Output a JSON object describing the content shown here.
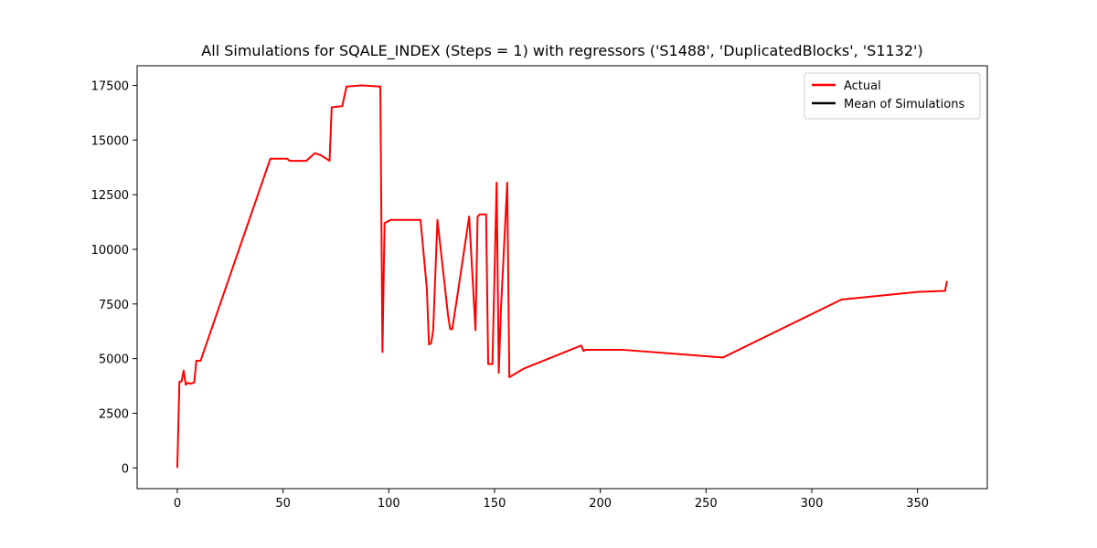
{
  "chart_data": {
    "type": "line",
    "title": "All Simulations for SQALE_INDEX (Steps = 1) with regressors ('S1488', 'DuplicatedBlocks', 'S1132')",
    "xlabel": "",
    "ylabel": "",
    "xlim": [
      -19,
      383
    ],
    "ylim": [
      -950,
      18400
    ],
    "x_ticks": [
      0,
      50,
      100,
      150,
      200,
      250,
      300,
      350
    ],
    "y_ticks": [
      0,
      2500,
      5000,
      7500,
      10000,
      12500,
      15000,
      17500
    ],
    "y_tick_labels": [
      "0",
      "2500",
      "5000",
      "7500",
      "10000",
      "12500",
      "15000",
      "17500"
    ],
    "grid": false,
    "legend_position": "top-right",
    "series": [
      {
        "name": "Actual",
        "color": "#ff0000",
        "points": [
          [
            0,
            0
          ],
          [
            1,
            3950
          ],
          [
            2,
            3950
          ],
          [
            3,
            4450
          ],
          [
            4,
            3800
          ],
          [
            5,
            3900
          ],
          [
            6,
            3850
          ],
          [
            8,
            3900
          ],
          [
            9,
            4900
          ],
          [
            11,
            4900
          ],
          [
            44,
            14150
          ],
          [
            52,
            14150
          ],
          [
            53,
            14050
          ],
          [
            57,
            14050
          ],
          [
            61,
            14050
          ],
          [
            65,
            14400
          ],
          [
            68,
            14300
          ],
          [
            72,
            14050
          ],
          [
            73,
            16500
          ],
          [
            78,
            16550
          ],
          [
            80,
            17450
          ],
          [
            87,
            17500
          ],
          [
            96,
            17450
          ],
          [
            97,
            5300
          ],
          [
            98,
            11200
          ],
          [
            101,
            11350
          ],
          [
            107,
            11350
          ],
          [
            115,
            11350
          ],
          [
            118,
            8200
          ],
          [
            119,
            5650
          ],
          [
            120,
            5700
          ],
          [
            121,
            6300
          ],
          [
            123,
            11350
          ],
          [
            128,
            7000
          ],
          [
            129,
            6350
          ],
          [
            130,
            6350
          ],
          [
            132,
            7600
          ],
          [
            138,
            11500
          ],
          [
            141,
            6300
          ],
          [
            142,
            11500
          ],
          [
            143,
            11600
          ],
          [
            146,
            11600
          ],
          [
            147,
            4750
          ],
          [
            149,
            4750
          ],
          [
            151,
            13050
          ],
          [
            152,
            4350
          ],
          [
            153,
            7200
          ],
          [
            156,
            13050
          ],
          [
            157,
            4150
          ],
          [
            164,
            4550
          ],
          [
            191,
            5600
          ],
          [
            192,
            5350
          ],
          [
            193,
            5400
          ],
          [
            211,
            5400
          ],
          [
            258,
            5050
          ],
          [
            314,
            7700
          ],
          [
            350,
            8050
          ],
          [
            363,
            8100
          ],
          [
            364,
            8550
          ]
        ]
      },
      {
        "name": "Mean of Simulations",
        "color": "#000000",
        "points": []
      }
    ]
  }
}
